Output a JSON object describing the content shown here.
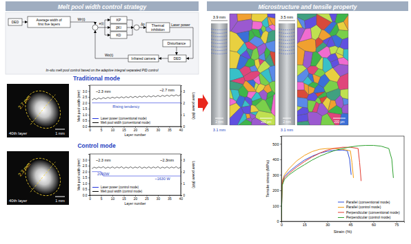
{
  "diagram": {
    "header": "Melt pool width control strategy",
    "nodes": {
      "ded_in": "DED",
      "average": [
        "Average width of",
        "first five layers"
      ],
      "wr": "Wr(t)",
      "e": "e(t)",
      "kp": "KP",
      "ki": "βKI",
      "kd": "KD",
      "dp": "Δp",
      "thermal": [
        "Thermal",
        "inhibition"
      ],
      "laser": "Laser power",
      "disturbance": "Disturbance",
      "ded_out": "DED",
      "camera": "Infrared camera",
      "wo": "Wo(t)"
    },
    "caption": "In-situ melt pool control based on the adaptive integral separated PID control"
  },
  "photos": [
    {
      "width_label": "2.7 mm",
      "layer_label": "40th layer",
      "scale_label": "1 mm"
    },
    {
      "width_label": "2.3 mm",
      "layer_label": "40th layer",
      "scale_label": "1 mm"
    }
  ],
  "micro": {
    "header": "Microstructure and tensile property",
    "panels": [
      {
        "top_width": "3.9 mm",
        "bottom_width": "3.1 mm",
        "photo_scale": "2 mm",
        "ebsd_scale": "200 µm"
      },
      {
        "top_width": "3.5 mm",
        "bottom_width": "3.1 mm",
        "photo_scale": "2 mm",
        "ebsd_scale": "200 µm"
      }
    ]
  },
  "chart_data": [
    {
      "type": "line",
      "title": "Traditional mode",
      "xlabel": "Layer number",
      "ylabel": "Melt pool width (mm)",
      "y2label": "Laser power (kW)",
      "xlim": [
        0,
        40
      ],
      "xticks": [
        0,
        5,
        10,
        15,
        20,
        25,
        30,
        35,
        40
      ],
      "ylim": [
        0,
        3.5
      ],
      "yticks": [
        {
          "value": 0,
          "label": "0.0"
        },
        {
          "value": 0.5,
          "label": "0.5"
        },
        {
          "value": 1,
          "label": "1.0"
        },
        {
          "value": 1.5,
          "label": "1.5"
        },
        {
          "value": 2,
          "label": "2.0"
        },
        {
          "value": 2.5,
          "label": "2.5"
        },
        {
          "value": 3,
          "label": "3.0"
        }
      ],
      "y2lim": [
        0,
        3.5
      ],
      "y2ticks": [
        0,
        1,
        2,
        3
      ],
      "legend": "lower left",
      "annotations": [
        "~2.3 mm",
        "~2.7 mm",
        "Rising tendency"
      ],
      "series": [
        {
          "name": "Laser power (conventional mode)",
          "color": "#2233dd",
          "axis": "y2",
          "x": [
            1,
            40
          ],
          "values": [
            2.0,
            2.0
          ]
        },
        {
          "name": "Melt pool width (conventional mode)",
          "color": "#000000",
          "x": [
            1,
            2,
            3,
            4,
            5,
            6,
            7,
            8,
            9,
            10,
            11,
            12,
            13,
            14,
            15,
            16,
            17,
            18,
            19,
            20,
            21,
            22,
            23,
            24,
            25,
            26,
            27,
            28,
            29,
            30,
            31,
            32,
            33,
            34,
            35,
            36,
            37,
            38,
            39,
            40
          ],
          "values": [
            2.25,
            2.38,
            2.3,
            2.42,
            2.33,
            2.45,
            2.36,
            2.47,
            2.38,
            2.49,
            2.4,
            2.5,
            2.41,
            2.52,
            2.42,
            2.53,
            2.44,
            2.55,
            2.45,
            2.56,
            2.46,
            2.57,
            2.48,
            2.59,
            2.49,
            2.6,
            2.5,
            2.61,
            2.52,
            2.63,
            2.53,
            2.64,
            2.55,
            2.66,
            2.56,
            2.67,
            2.58,
            2.69,
            2.59,
            2.7
          ]
        }
      ]
    },
    {
      "type": "line",
      "title": "Control mode",
      "xlabel": "Layer number",
      "ylabel": "Melt pool width (mm)",
      "y2label": "Laser power (kW)",
      "xlim": [
        0,
        40
      ],
      "xticks": [
        0,
        5,
        10,
        15,
        20,
        25,
        30,
        35,
        40
      ],
      "ylim": [
        0,
        3.5
      ],
      "yticks": [
        {
          "value": 0,
          "label": "0.0"
        },
        {
          "value": 0.5,
          "label": "0.5"
        },
        {
          "value": 1,
          "label": "1.0"
        },
        {
          "value": 1.5,
          "label": "1.5"
        },
        {
          "value": 2,
          "label": "2.0"
        },
        {
          "value": 2.5,
          "label": "2.5"
        },
        {
          "value": 3,
          "label": "3.0"
        }
      ],
      "y2lim": [
        0,
        3.5
      ],
      "y2ticks": [
        0,
        1,
        2,
        3
      ],
      "legend": "lower left",
      "annotations": [
        "~2.3 mm",
        "~2.3mm",
        "2000W",
        "~1630 W"
      ],
      "series": [
        {
          "name": "Laser power (control mode)",
          "color": "#2233dd",
          "axis": "y2",
          "x": [
            1,
            5,
            6,
            40
          ],
          "values": [
            2.0,
            2.0,
            1.63,
            1.63
          ]
        },
        {
          "name": "Melt pool width (control mode)",
          "color": "#000000",
          "x": [
            1,
            2,
            3,
            4,
            5,
            6,
            7,
            8,
            9,
            10,
            11,
            12,
            13,
            14,
            15,
            16,
            17,
            18,
            19,
            20,
            21,
            22,
            23,
            24,
            25,
            26,
            27,
            28,
            29,
            30,
            31,
            32,
            33,
            34,
            35,
            36,
            37,
            38,
            39,
            40
          ],
          "values": [
            2.25,
            2.38,
            2.3,
            2.4,
            2.32,
            2.42,
            2.28,
            2.39,
            2.3,
            2.41,
            2.29,
            2.4,
            2.31,
            2.42,
            2.28,
            2.39,
            2.3,
            2.41,
            2.29,
            2.4,
            2.31,
            2.42,
            2.28,
            2.39,
            2.3,
            2.41,
            2.29,
            2.4,
            2.31,
            2.42,
            2.28,
            2.39,
            2.3,
            2.41,
            2.29,
            2.4,
            2.31,
            2.42,
            2.28,
            2.39
          ]
        }
      ]
    },
    {
      "type": "line",
      "xlabel": "Strain (%)",
      "ylabel": "Tensile stress (MPa)",
      "xlim": [
        0,
        80
      ],
      "xticks": [
        0,
        15,
        30,
        45,
        60,
        75
      ],
      "ylim": [
        0,
        550
      ],
      "yticks": [
        0,
        100,
        200,
        300,
        400,
        500
      ],
      "legend": "lower right",
      "series": [
        {
          "name": "Parallel (conventional mode)",
          "color": "#2b4bd8",
          "x": [
            0,
            0.5,
            2,
            5,
            10,
            15,
            20,
            25,
            30,
            35,
            40,
            43,
            44.5,
            45.5
          ],
          "values": [
            0,
            250,
            290,
            320,
            360,
            395,
            420,
            440,
            452,
            458,
            460,
            455,
            400,
            300
          ]
        },
        {
          "name": "Parallel (control mode)",
          "color": "#f39c12",
          "x": [
            0,
            0.5,
            2,
            5,
            10,
            15,
            20,
            25,
            30,
            35,
            40,
            45,
            46,
            47
          ],
          "values": [
            0,
            260,
            300,
            340,
            390,
            425,
            450,
            465,
            470,
            470,
            465,
            455,
            380,
            280
          ]
        },
        {
          "name": "Perpendicular (conventional mode)",
          "color": "#e23a2e",
          "x": [
            0,
            0.5,
            2,
            5,
            10,
            15,
            20,
            25,
            30,
            35,
            40,
            45,
            50,
            51,
            52
          ],
          "values": [
            0,
            240,
            280,
            310,
            350,
            385,
            415,
            440,
            460,
            472,
            478,
            478,
            470,
            380,
            260
          ]
        },
        {
          "name": "Perpendicular (control mode)",
          "color": "#2ca02c",
          "x": [
            0,
            0.5,
            2,
            5,
            10,
            15,
            20,
            25,
            30,
            35,
            40,
            45,
            50,
            55,
            60,
            65,
            70,
            72,
            73
          ],
          "values": [
            0,
            230,
            270,
            300,
            335,
            365,
            395,
            420,
            440,
            458,
            470,
            480,
            487,
            490,
            490,
            485,
            470,
            400,
            280
          ]
        }
      ]
    }
  ]
}
